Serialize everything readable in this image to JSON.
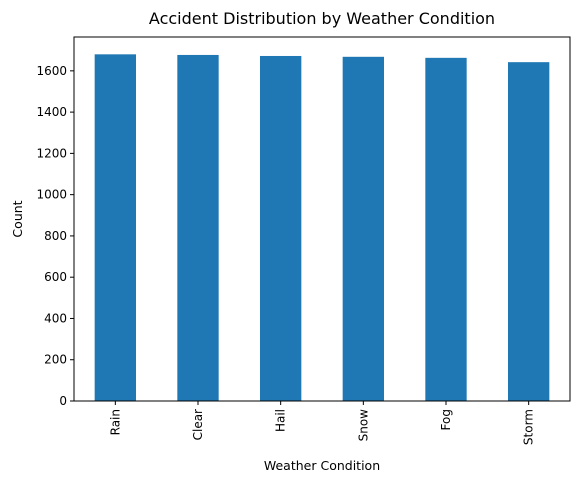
{
  "chart_data": {
    "type": "bar",
    "title": "Accident Distribution by Weather Condition",
    "xlabel": "Weather Condition",
    "ylabel": "Count",
    "categories": [
      "Rain",
      "Clear",
      "Hail",
      "Snow",
      "Fog",
      "Storm"
    ],
    "values": [
      1680,
      1677,
      1672,
      1668,
      1663,
      1642
    ],
    "ylim": [
      0,
      1764
    ],
    "yticks": [
      0,
      200,
      400,
      600,
      800,
      1000,
      1200,
      1400,
      1600
    ],
    "bar_color": "#1f77b4",
    "grid": false,
    "legend": "none",
    "x_tick_rotation": "vertical"
  }
}
